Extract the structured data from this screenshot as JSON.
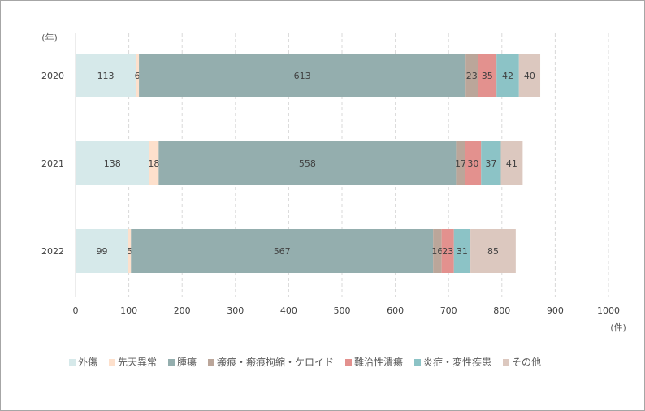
{
  "chart_data": {
    "type": "bar",
    "orientation": "horizontal",
    "stacked": true,
    "categories": [
      "2020",
      "2021",
      "2022"
    ],
    "category_unit": "(年)",
    "value_unit": "(件)",
    "xlim": [
      0,
      1000
    ],
    "x_ticks": [
      0,
      100,
      200,
      300,
      400,
      500,
      600,
      700,
      800,
      900,
      1000
    ],
    "grid": "vertical-dashed",
    "legend_position": "bottom",
    "series": [
      {
        "name": "外傷",
        "color": "#d6e9ea",
        "values": [
          113,
          138,
          99
        ]
      },
      {
        "name": "先天異常",
        "color": "#fde0cc",
        "values": [
          6,
          18,
          5
        ]
      },
      {
        "name": "腫瘍",
        "color": "#94aeae",
        "values": [
          613,
          558,
          567
        ]
      },
      {
        "name": "瘢痕・瘢痕拘縮・ケロイド",
        "color": "#bba69a",
        "values": [
          23,
          17,
          16
        ]
      },
      {
        "name": "難治性潰瘍",
        "color": "#e3918e",
        "values": [
          35,
          30,
          23
        ]
      },
      {
        "name": "炎症・変性疾患",
        "color": "#8cc3c6",
        "values": [
          42,
          37,
          31
        ]
      },
      {
        "name": "その他",
        "color": "#dcc8bf",
        "values": [
          40,
          41,
          85
        ]
      }
    ]
  }
}
